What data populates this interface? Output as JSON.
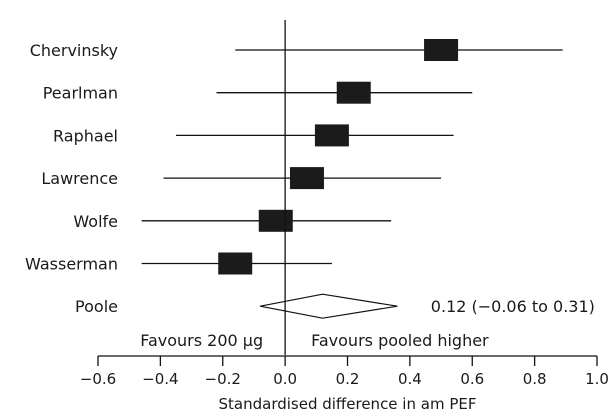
{
  "chart_data": {
    "type": "forest",
    "xlabel": "Standardised difference in am PEF",
    "xlim": [
      -0.6,
      1.0
    ],
    "xticks": [
      -0.6,
      -0.4,
      -0.2,
      0.0,
      0.2,
      0.4,
      0.6,
      0.8,
      1.0
    ],
    "xtick_labels": [
      "−0.6",
      "−0.4",
      "−0.2",
      "0.0",
      "0.2",
      "0.4",
      "0.6",
      "0.8",
      "1.0"
    ],
    "studies": [
      {
        "name": "Chervinsky",
        "estimate": 0.5,
        "lower": -0.16,
        "upper": 0.89
      },
      {
        "name": "Pearlman",
        "estimate": 0.22,
        "lower": -0.22,
        "upper": 0.6
      },
      {
        "name": "Raphael",
        "estimate": 0.15,
        "lower": -0.35,
        "upper": 0.54
      },
      {
        "name": "Lawrence",
        "estimate": 0.07,
        "lower": -0.39,
        "upper": 0.5
      },
      {
        "name": "Wolfe",
        "estimate": -0.03,
        "lower": -0.46,
        "upper": 0.34
      },
      {
        "name": "Wasserman",
        "estimate": -0.16,
        "lower": -0.46,
        "upper": 0.15
      }
    ],
    "pooled": {
      "name": "Poole",
      "estimate": 0.12,
      "lower": -0.06,
      "upper": 0.31,
      "label": "0.12 (−0.06 to 0.31)"
    },
    "favours_left": "Favours 200 µg",
    "favours_right": "Favours pooled higher"
  }
}
